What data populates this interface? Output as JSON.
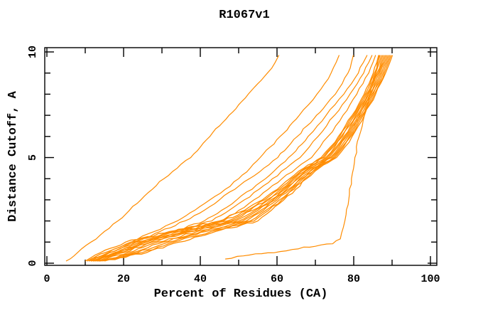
{
  "title": "R1067v1",
  "axes": {
    "x": {
      "label": "Percent of Residues (CA)",
      "min": 0,
      "max": 100,
      "major_ticks": [
        0,
        20,
        40,
        60,
        80,
        100
      ],
      "minor_ticks": [
        10,
        30,
        50,
        70,
        90
      ],
      "tick_labels": [
        "0",
        "20",
        "40",
        "60",
        "80",
        "100"
      ]
    },
    "y": {
      "label": "Distance Cutoff, A",
      "min": 0,
      "max": 10,
      "major_ticks": [
        0,
        5,
        10
      ],
      "minor_ticks": [
        1,
        2,
        3,
        4,
        6,
        7,
        8,
        9
      ],
      "tick_labels": [
        "0",
        "5",
        "10"
      ]
    }
  },
  "chart_data": {
    "type": "line",
    "title": "R1067v1",
    "xlabel": "Percent of Residues (CA)",
    "ylabel": "Distance Cutoff, A",
    "xlim": [
      0,
      100
    ],
    "ylim": [
      0,
      10
    ],
    "grid": false,
    "legend": "none",
    "line_color": "#ff8c00",
    "frame_color": "#000000",
    "description": "Cumulative percent of CA residues under each distance cutoff for ~19 models of target R1067v1; one poor outlier on the left, a dense bundle of similar models, and one flat-then-steep outlier on the right.",
    "y_anchors": [
      0.1,
      0.5,
      1,
      1.5,
      2,
      2.5,
      3,
      3.5,
      4,
      4.5,
      5,
      5.5,
      6,
      6.5,
      7,
      7.5,
      8,
      8.5,
      9,
      9.5,
      9.85
    ],
    "curves": [
      {
        "name": "model-left-outlier",
        "x": [
          5,
          8,
          11.5,
          15,
          18.5,
          21.5,
          24.5,
          27.5,
          30.5,
          34,
          37.5,
          40,
          42.5,
          45,
          47.5,
          50,
          52.5,
          55,
          57.5,
          59.5,
          60.5
        ]
      },
      {
        "name": "model-spread-1",
        "x": [
          10.5,
          16,
          22,
          28,
          34,
          38.5,
          42.5,
          46.5,
          50,
          53,
          55.6,
          58.2,
          60.8,
          63.3,
          65.8,
          68.2,
          70.4,
          72.4,
          74.1,
          75.4,
          76.2
        ]
      },
      {
        "name": "model-spread-2",
        "x": [
          11,
          16.5,
          23,
          29.5,
          36,
          41,
          45,
          49,
          52.8,
          56.6,
          60.2,
          62.8,
          65.3,
          67.8,
          70.3,
          72.8,
          75.2,
          77,
          78.5,
          79.4,
          79.9
        ]
      },
      {
        "name": "model-spread-3",
        "x": [
          11.5,
          18,
          25,
          33,
          41,
          45.5,
          49.5,
          53.5,
          57,
          60,
          63,
          65.6,
          68.1,
          70.5,
          72.8,
          75.1,
          77.4,
          79.4,
          81.2,
          82.5,
          83.5
        ]
      },
      {
        "name": "model-spread-4",
        "x": [
          12,
          18.5,
          26,
          34.5,
          43,
          47.5,
          51.5,
          55.3,
          58.8,
          62.4,
          66,
          68.4,
          70.7,
          72.9,
          75,
          77,
          79,
          80.9,
          82.6,
          83.9,
          84.8
        ]
      },
      {
        "name": "model-spread-5",
        "x": [
          12.5,
          19,
          27,
          36,
          45.5,
          50,
          54,
          57.7,
          61.3,
          65.1,
          69,
          71.2,
          73.3,
          75.3,
          77.2,
          79,
          80.8,
          82.4,
          83.9,
          85,
          85.7
        ]
      }
    ],
    "bundle": {
      "name": "model-bundle",
      "count": 11,
      "center_x": [
        12.5,
        20,
        27.5,
        38,
        50,
        55,
        59,
        62.5,
        65.5,
        69,
        73.5,
        75.8,
        77.8,
        79.5,
        81.2,
        82.7,
        84.2,
        85.5,
        86.7,
        87.7,
        88.3
      ],
      "spread_x": [
        2.5,
        6,
        7,
        6,
        5,
        3.5,
        2.8,
        2.4,
        2.2,
        2,
        2,
        1.9,
        1.8,
        1.7,
        1.6,
        1.5,
        1.5,
        1.5,
        1.6,
        1.7,
        1.8
      ],
      "offsets": [
        -1,
        -0.8,
        -0.6,
        -0.4,
        -0.2,
        0,
        0.2,
        0.4,
        0.6,
        0.8,
        1
      ]
    },
    "right_outlier": {
      "name": "model-right-outlier",
      "points": [
        [
          46.5,
          0.2
        ],
        [
          56,
          0.45
        ],
        [
          64,
          0.65
        ],
        [
          70,
          0.8
        ],
        [
          74.5,
          0.92
        ],
        [
          76.5,
          1.15
        ],
        [
          77.3,
          1.7
        ],
        [
          78,
          2.3
        ],
        [
          78.7,
          3.0
        ],
        [
          79.4,
          4.0
        ],
        [
          80.3,
          5.0
        ],
        [
          81.4,
          6.0
        ],
        [
          82.8,
          7.0
        ],
        [
          84.3,
          8.0
        ],
        [
          85.7,
          9.0
        ],
        [
          86.7,
          9.85
        ]
      ]
    }
  }
}
